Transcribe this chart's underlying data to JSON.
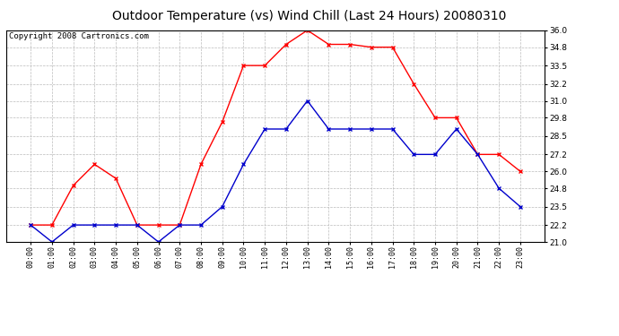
{
  "title": "Outdoor Temperature (vs) Wind Chill (Last 24 Hours) 20080310",
  "copyright": "Copyright 2008 Cartronics.com",
  "x_labels": [
    "00:00",
    "01:00",
    "02:00",
    "03:00",
    "04:00",
    "05:00",
    "06:00",
    "07:00",
    "08:00",
    "09:00",
    "10:00",
    "11:00",
    "12:00",
    "13:00",
    "14:00",
    "15:00",
    "16:00",
    "17:00",
    "18:00",
    "19:00",
    "20:00",
    "21:00",
    "22:00",
    "23:00"
  ],
  "temp_red": [
    22.2,
    22.2,
    25.0,
    26.5,
    25.5,
    22.2,
    22.2,
    22.2,
    26.5,
    29.5,
    33.5,
    33.5,
    35.0,
    36.0,
    35.0,
    35.0,
    34.8,
    34.8,
    32.2,
    29.8,
    29.8,
    27.2,
    27.2,
    26.0
  ],
  "wind_blue": [
    22.2,
    21.0,
    22.2,
    22.2,
    22.2,
    22.2,
    21.0,
    22.2,
    22.2,
    23.5,
    26.5,
    29.0,
    29.0,
    31.0,
    29.0,
    29.0,
    29.0,
    29.0,
    27.2,
    27.2,
    29.0,
    27.2,
    24.8,
    23.5
  ],
  "ylim_min": 21.0,
  "ylim_max": 36.0,
  "yticks": [
    21.0,
    22.2,
    23.5,
    24.8,
    26.0,
    27.2,
    28.5,
    29.8,
    31.0,
    32.2,
    33.5,
    34.8,
    36.0
  ],
  "red_color": "#ff0000",
  "blue_color": "#0000cc",
  "bg_color": "#ffffff",
  "grid_color": "#bbbbbb",
  "title_fontsize": 10,
  "copyright_fontsize": 6.5
}
